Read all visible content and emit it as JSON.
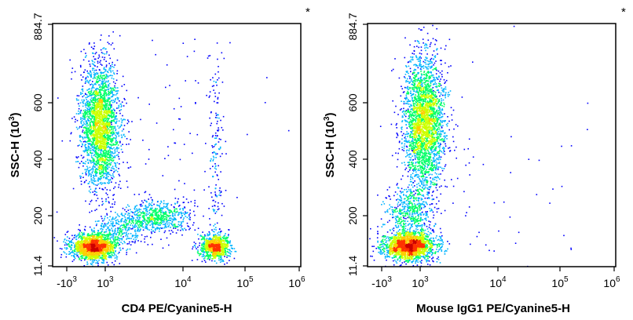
{
  "chart_data": [
    {
      "type": "scatter",
      "subtype": "flow-cytometry-density-dot-plot",
      "xlabel": "CD4 PE/Cyanine5-H",
      "ylabel": "SSC-H",
      "ylabel_unit_base": "10",
      "ylabel_unit_exp": "3",
      "corner_mark": "*",
      "x_scale": "biexponential",
      "x_ticks": [
        {
          "value": -1000,
          "base": "-10",
          "exp": "3"
        },
        {
          "value": 1000,
          "base": "10",
          "exp": "3"
        },
        {
          "value": 10000,
          "base": "10",
          "exp": "4"
        },
        {
          "value": 100000,
          "base": "10",
          "exp": "5"
        },
        {
          "value": 1000000,
          "base": "10",
          "exp": "6"
        }
      ],
      "y_ticks": [
        "11.4",
        "200",
        "400",
        "600",
        "884.7"
      ],
      "ylim": [
        11.4,
        884.7
      ],
      "populations": [
        {
          "name": "",
          "x_center": 700,
          "y_center": 510,
          "density": "high"
        },
        {
          "name": "",
          "x_center": 800,
          "y_center": 95,
          "density": "high"
        },
        {
          "name": "",
          "x_center": 30000,
          "y_center": 90,
          "density": "high"
        },
        {
          "name": "",
          "x_center": 4000,
          "y_center": 215,
          "density": "medium"
        }
      ]
    },
    {
      "type": "scatter",
      "subtype": "flow-cytometry-density-dot-plot",
      "xlabel": "Mouse IgG1 PE/Cyanine5-H",
      "ylabel": "SSC-H",
      "ylabel_unit_base": "10",
      "ylabel_unit_exp": "3",
      "corner_mark": "*",
      "x_scale": "biexponential",
      "x_ticks": [
        {
          "value": -1000,
          "base": "-10",
          "exp": "3"
        },
        {
          "value": 1000,
          "base": "10",
          "exp": "3"
        },
        {
          "value": 10000,
          "base": "10",
          "exp": "4"
        },
        {
          "value": 100000,
          "base": "10",
          "exp": "5"
        },
        {
          "value": 1000000,
          "base": "10",
          "exp": "6"
        }
      ],
      "y_ticks": [
        "11.4",
        "200",
        "400",
        "600",
        "884.7"
      ],
      "ylim": [
        11.4,
        884.7
      ],
      "populations": [
        {
          "name": "",
          "x_center": 700,
          "y_center": 520,
          "density": "high"
        },
        {
          "name": "",
          "x_center": 700,
          "y_center": 95,
          "density": "high"
        }
      ]
    }
  ],
  "colors": {
    "density_scale": [
      "#0000ff",
      "#00b4ff",
      "#00ff66",
      "#ccff00",
      "#ffcc00",
      "#ff3300",
      "#cc0000"
    ],
    "axis": "#000000",
    "background": "#ffffff"
  }
}
